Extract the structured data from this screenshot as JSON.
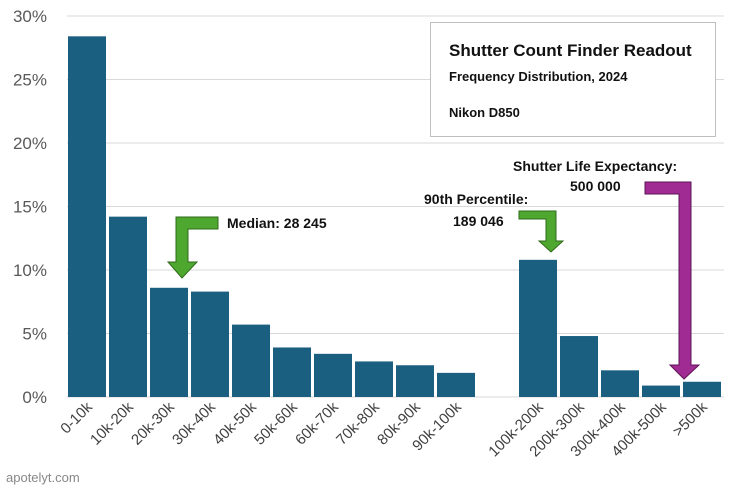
{
  "chart_data": {
    "type": "bar",
    "title": "Shutter Count Finder Readout",
    "subtitle": "Frequency Distribution, 2024",
    "camera": "Nikon D850",
    "categories": [
      "0-10k",
      "10k-20k",
      "20k-30k",
      "30k-40k",
      "40k-50k",
      "50k-60k",
      "60k-70k",
      "70k-80k",
      "80k-90k",
      "90k-100k",
      "",
      "100k-200k",
      "200k-300k",
      "300k-400k",
      "400k-500k",
      ">500k"
    ],
    "values": [
      28.4,
      14.2,
      8.6,
      8.3,
      5.7,
      3.9,
      3.4,
      2.8,
      2.5,
      1.9,
      null,
      10.8,
      4.8,
      2.1,
      0.9,
      1.2
    ],
    "ylim": [
      0,
      30
    ],
    "yticks": [
      "0%",
      "5%",
      "10%",
      "15%",
      "20%",
      "25%",
      "30%"
    ],
    "grid": true,
    "bar_color": "#1a5e80",
    "annotations": {
      "median": {
        "label": "Median: 28 245",
        "color": "#4ea72e"
      },
      "p90": {
        "line1": "90th Percentile:",
        "line2": "189 046",
        "color": "#4ea72e"
      },
      "life": {
        "line1": "Shutter Life Expectancy:",
        "line2": "500 000",
        "color": "#a02b93"
      }
    }
  },
  "watermark": "apotelyt.com"
}
